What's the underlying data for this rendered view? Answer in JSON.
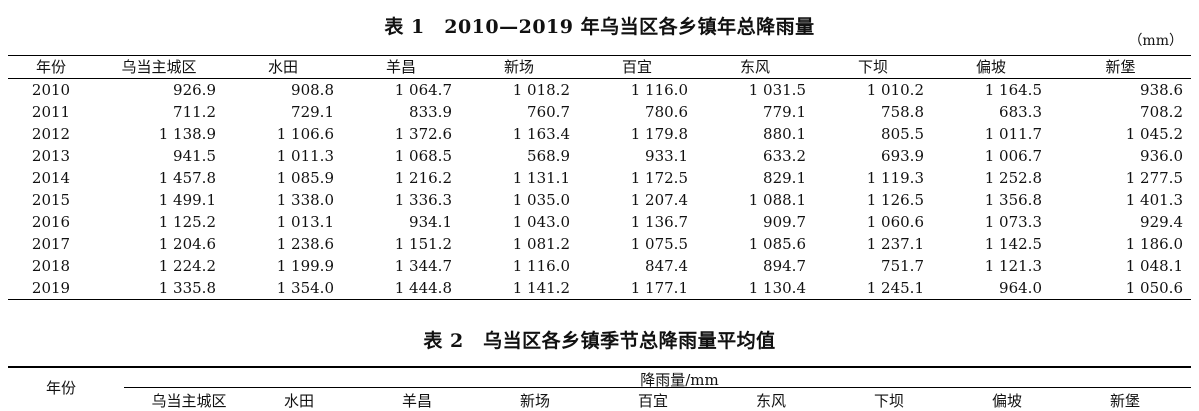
{
  "table1": {
    "caption": "表 1　2010—2019 年乌当区各乡镇年总降雨量",
    "unit": "（mm）",
    "headers": [
      "年份",
      "乌当主城区",
      "水田",
      "羊昌",
      "新场",
      "百宜",
      "东风",
      "下坝",
      "偏坡",
      "新堡"
    ],
    "rows": [
      [
        "2010",
        "926.9",
        "908.8",
        "1 064.7",
        "1 018.2",
        "1 116.0",
        "1 031.5",
        "1 010.2",
        "1 164.5",
        "938.6"
      ],
      [
        "2011",
        "711.2",
        "729.1",
        "833.9",
        "760.7",
        "780.6",
        "779.1",
        "758.8",
        "683.3",
        "708.2"
      ],
      [
        "2012",
        "1 138.9",
        "1 106.6",
        "1 372.6",
        "1 163.4",
        "1 179.8",
        "880.1",
        "805.5",
        "1 011.7",
        "1 045.2"
      ],
      [
        "2013",
        "941.5",
        "1 011.3",
        "1 068.5",
        "568.9",
        "933.1",
        "633.2",
        "693.9",
        "1 006.7",
        "936.0"
      ],
      [
        "2014",
        "1 457.8",
        "1 085.9",
        "1 216.2",
        "1 131.1",
        "1 172.5",
        "829.1",
        "1 119.3",
        "1 252.8",
        "1 277.5"
      ],
      [
        "2015",
        "1 499.1",
        "1 338.0",
        "1 336.3",
        "1 035.0",
        "1 207.4",
        "1 088.1",
        "1 126.5",
        "1 356.8",
        "1 401.3"
      ],
      [
        "2016",
        "1 125.2",
        "1 013.1",
        "934.1",
        "1 043.0",
        "1 136.7",
        "909.7",
        "1 060.6",
        "1 073.3",
        "929.4"
      ],
      [
        "2017",
        "1 204.6",
        "1 238.6",
        "1 151.2",
        "1 081.2",
        "1 075.5",
        "1 085.6",
        "1 237.1",
        "1 142.5",
        "1 186.0"
      ],
      [
        "2018",
        "1 224.2",
        "1 199.9",
        "1 344.7",
        "1 116.0",
        "847.4",
        "894.7",
        "751.7",
        "1 121.3",
        "1 048.1"
      ],
      [
        "2019",
        "1 335.8",
        "1 354.0",
        "1 444.8",
        "1 141.2",
        "1 177.1",
        "1 130.4",
        "1 245.1",
        "964.0",
        "1 050.6"
      ]
    ]
  },
  "table2": {
    "caption": "表 2　乌当区各乡镇季节总降雨量平均值",
    "year_header": "年份",
    "group_header": "降雨量/mm",
    "headers": [
      "乌当主城区",
      "水田",
      "羊昌",
      "新场",
      "百宜",
      "东风",
      "下坝",
      "偏坡",
      "新堡"
    ]
  }
}
